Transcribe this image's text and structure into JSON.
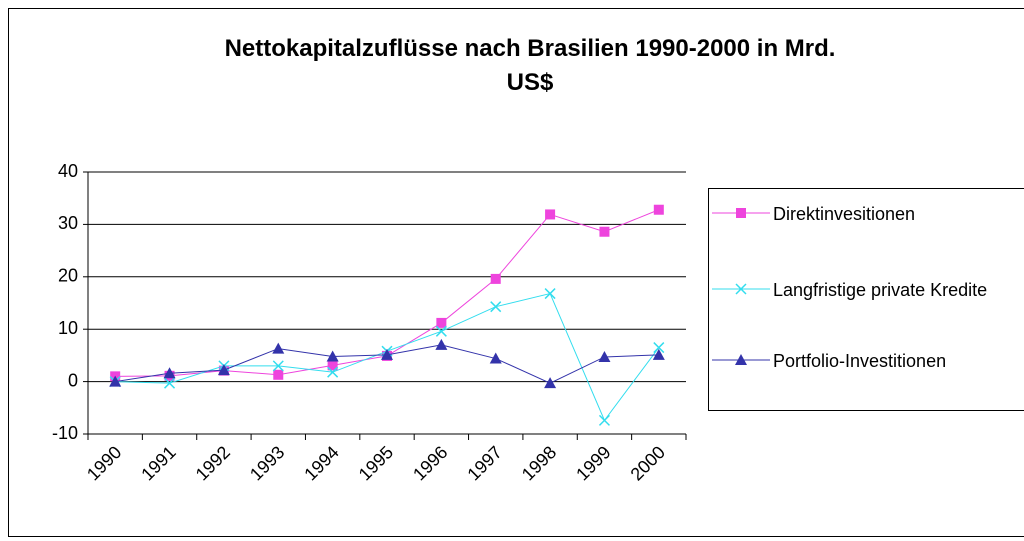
{
  "chart_data": {
    "type": "line",
    "title": "Nettokapitalzuflüsse nach Brasilien 1990-2000 in Mrd. US$",
    "categories": [
      "1990",
      "1991",
      "1992",
      "1993",
      "1994",
      "1995",
      "1996",
      "1997",
      "1998",
      "1999",
      "2000"
    ],
    "series": [
      {
        "name": "Direktinvesitionen",
        "color": "#ee44dd",
        "marker": "square",
        "values": [
          1.0,
          1.1,
          2.1,
          1.3,
          3.1,
          4.9,
          11.2,
          19.6,
          31.9,
          28.6,
          32.8
        ]
      },
      {
        "name": "Langfristige private Kredite",
        "color": "#33ddee",
        "marker": "x",
        "values": [
          0,
          -0.3,
          3.0,
          3.0,
          1.8,
          5.8,
          9.6,
          14.3,
          16.8,
          -7.4,
          6.5
        ]
      },
      {
        "name": "Portfolio-Investitionen",
        "color": "#3333aa",
        "marker": "triangle",
        "values": [
          0,
          1.6,
          2.2,
          6.3,
          4.8,
          5.1,
          7.0,
          4.4,
          -0.3,
          4.7,
          5.1
        ]
      }
    ],
    "ylim": [
      -10,
      40
    ],
    "yticks": [
      -10,
      0,
      10,
      20,
      30,
      40
    ],
    "grid": true,
    "legend": "right"
  }
}
